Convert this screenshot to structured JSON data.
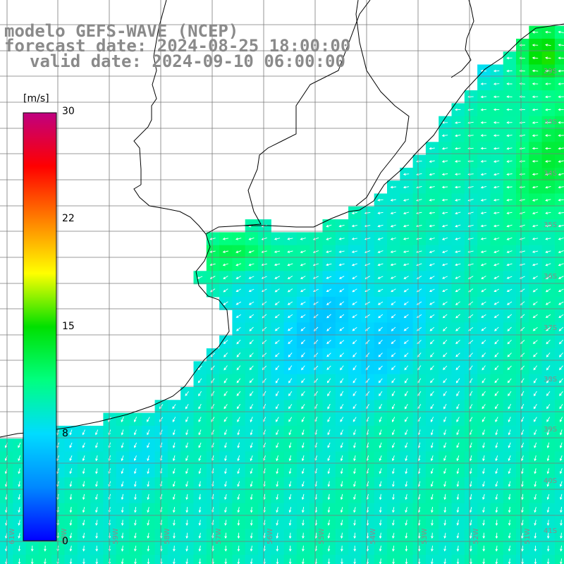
{
  "titles": {
    "line1": "modelo GEFS-WAVE (NCEP)",
    "line2": "forecast date: 2024-08-25 18:00:00",
    "line3": "valid date: 2024-09-10 06:00:00"
  },
  "colorbar": {
    "unit": "[m/s]",
    "ticks": [
      "30",
      "22",
      "15",
      "8",
      "0"
    ],
    "tick_values": [
      30,
      22,
      15,
      8,
      0
    ],
    "colors": [
      "#0000ff",
      "#0088ff",
      "#00dcff",
      "#00ff80",
      "#00e000",
      "#ffff00",
      "#ff8000",
      "#ff0000",
      "#c00080"
    ]
  },
  "lat_labels": [
    "29S",
    "33S",
    "34S",
    "35S",
    "36S",
    "37S",
    "38S",
    "39S",
    "40S",
    "41S"
  ],
  "lon_labels": [
    "61W",
    "60W",
    "59W",
    "58W",
    "57W",
    "56W",
    "55W",
    "54W",
    "53W",
    "52W",
    "51W"
  ],
  "field": {
    "variable": "wind speed",
    "unit": "m/s",
    "typical_value_range": [
      6,
      14
    ]
  }
}
